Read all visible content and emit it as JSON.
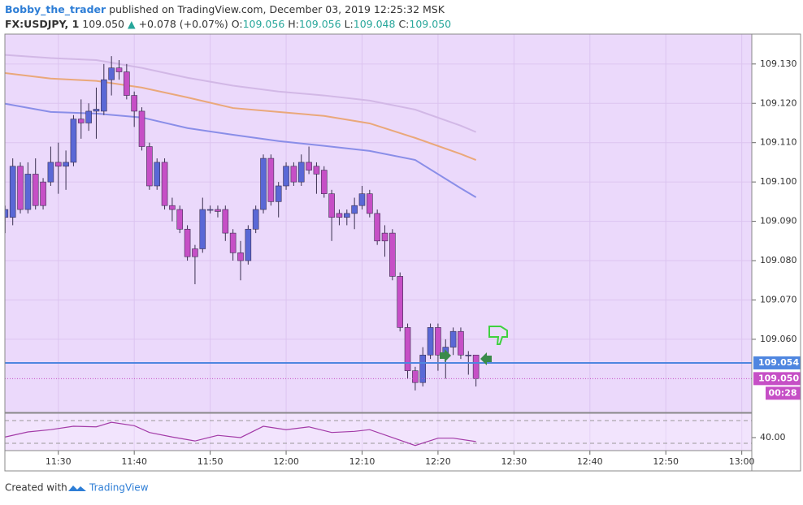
{
  "header": {
    "author": "Bobby_the_trader",
    "published": "published on TradingView.com, December 03, 2019 12:25:32 MSK",
    "symbol": "FX:USDJPY, 1",
    "last": "109.050",
    "arrow": "▲",
    "change": "+0.078 (+0.07%)",
    "o_label": "O:",
    "o": "109.056",
    "h_label": "H:",
    "h": "109.056",
    "l_label": "L:",
    "l": "109.048",
    "c_label": "C:",
    "c": "109.050"
  },
  "footer": {
    "created": "Created with",
    "brand": "TradingView"
  },
  "chart_data": [
    {
      "type": "candlestick",
      "grid": true,
      "background": "#ebd9fb",
      "up_color": "#5a68d6",
      "down_color": "#c64fc6",
      "xlim": [
        "11:22",
        "13:01"
      ],
      "xticks": [
        "11:30",
        "11:40",
        "11:50",
        "12:00",
        "12:10",
        "12:20",
        "12:30",
        "12:40",
        "12:50",
        "13:00"
      ],
      "ylim": [
        109.0414,
        109.1376
      ],
      "yticks": [
        {
          "value": 109.06,
          "label": "109.060"
        },
        {
          "value": 109.07,
          "label": "109.070"
        },
        {
          "value": 109.08,
          "label": "109.080"
        },
        {
          "value": 109.09,
          "label": "109.090"
        },
        {
          "value": 109.1,
          "label": "109.100"
        },
        {
          "value": 109.11,
          "label": "109.110"
        },
        {
          "value": 109.12,
          "label": "109.120"
        },
        {
          "value": 109.13,
          "label": "109.130"
        }
      ],
      "candles": {
        "x": [
          "11:23",
          "11:24",
          "11:25",
          "11:26",
          "11:27",
          "11:28",
          "11:29",
          "11:30",
          "11:31",
          "11:32",
          "11:33",
          "11:34",
          "11:35",
          "11:36",
          "11:37",
          "11:38",
          "11:39",
          "11:40",
          "11:41",
          "11:42",
          "11:43",
          "11:44",
          "11:45",
          "11:46",
          "11:47",
          "11:48",
          "11:49",
          "11:50",
          "11:51",
          "11:52",
          "11:53",
          "11:54",
          "11:55",
          "11:56",
          "11:57",
          "11:58",
          "11:59",
          "12:00",
          "12:01",
          "12:02",
          "12:03",
          "12:04",
          "12:05",
          "12:06",
          "12:07",
          "12:08",
          "12:09",
          "12:10",
          "12:11",
          "12:12",
          "12:13",
          "12:14",
          "12:15",
          "12:16",
          "12:17",
          "12:18",
          "12:19",
          "12:20",
          "12:21",
          "12:22",
          "12:23",
          "12:24",
          "12:25"
        ],
        "open": [
          109.091,
          109.091,
          109.104,
          109.093,
          109.102,
          109.1,
          109.1,
          109.105,
          109.104,
          109.105,
          109.116,
          109.115,
          109.118,
          109.118,
          109.126,
          109.129,
          109.128,
          109.122,
          109.118,
          109.109,
          109.099,
          109.105,
          109.094,
          109.093,
          109.088,
          109.083,
          109.083,
          109.093,
          109.093,
          109.093,
          109.087,
          109.082,
          109.08,
          109.088,
          109.093,
          109.106,
          109.095,
          109.099,
          109.104,
          109.1,
          109.105,
          109.104,
          109.103,
          109.097,
          109.092,
          109.091,
          109.092,
          109.094,
          109.097,
          109.092,
          109.087,
          109.087,
          109.076,
          109.063,
          109.052,
          109.049,
          109.056,
          109.063,
          109.056,
          109.058,
          109.062,
          109.056,
          109.056
        ],
        "high": [
          109.094,
          109.106,
          109.105,
          109.105,
          109.106,
          109.101,
          109.109,
          109.11,
          109.108,
          109.117,
          109.121,
          109.12,
          109.124,
          109.13,
          109.132,
          109.131,
          109.13,
          109.123,
          109.119,
          109.11,
          109.106,
          109.106,
          109.096,
          109.094,
          109.089,
          109.084,
          109.096,
          109.094,
          109.094,
          109.094,
          109.088,
          109.085,
          109.089,
          109.094,
          109.107,
          109.107,
          109.1,
          109.105,
          109.105,
          109.107,
          109.109,
          109.105,
          109.104,
          109.098,
          109.093,
          109.093,
          109.096,
          109.099,
          109.098,
          109.093,
          109.089,
          109.088,
          109.077,
          109.064,
          109.053,
          109.058,
          109.064,
          109.064,
          109.06,
          109.063,
          109.063,
          109.057,
          109.056
        ],
        "low": [
          109.087,
          109.089,
          109.092,
          109.092,
          109.093,
          109.093,
          109.099,
          109.097,
          109.098,
          109.104,
          109.111,
          109.113,
          109.111,
          109.117,
          109.122,
          109.126,
          109.121,
          109.114,
          109.108,
          109.098,
          109.098,
          109.093,
          109.09,
          109.087,
          109.08,
          109.074,
          109.082,
          109.092,
          109.091,
          109.085,
          109.08,
          109.075,
          109.079,
          109.087,
          109.092,
          109.094,
          109.091,
          109.098,
          109.099,
          109.099,
          109.102,
          109.097,
          109.096,
          109.085,
          109.089,
          109.089,
          109.088,
          109.093,
          109.091,
          109.084,
          109.081,
          109.075,
          109.062,
          109.05,
          109.047,
          109.048,
          109.055,
          109.052,
          109.05,
          109.056,
          109.055,
          109.051,
          109.048
        ],
        "close": [
          109.093,
          109.104,
          109.093,
          109.102,
          109.094,
          109.094,
          109.105,
          109.104,
          109.105,
          109.116,
          109.115,
          109.118,
          109.1185,
          109.126,
          109.129,
          109.128,
          109.122,
          109.118,
          109.109,
          109.099,
          109.105,
          109.094,
          109.093,
          109.088,
          109.081,
          109.081,
          109.093,
          109.093,
          109.0925,
          109.087,
          109.082,
          109.08,
          109.088,
          109.093,
          109.106,
          109.095,
          109.099,
          109.104,
          109.1,
          109.105,
          109.103,
          109.102,
          109.097,
          109.091,
          109.091,
          109.092,
          109.094,
          109.097,
          109.092,
          109.085,
          109.085,
          109.076,
          109.063,
          109.052,
          109.049,
          109.056,
          109.063,
          109.056,
          109.058,
          109.062,
          109.056,
          109.056,
          109.05
        ]
      },
      "series": [
        {
          "color": "#d2b8e6",
          "x": [
            "11:23",
            "11:29",
            "11:35",
            "11:41",
            "11:47",
            "11:53",
            "11:59",
            "12:05",
            "12:11",
            "12:17",
            "12:23",
            "12:25"
          ],
          "values": [
            109.1323,
            109.1315,
            109.131,
            109.129,
            109.1265,
            109.1245,
            109.123,
            109.122,
            109.1207,
            109.1184,
            109.1143,
            109.1127
          ]
        },
        {
          "color": "#eaa87a",
          "x": [
            "11:23",
            "11:29",
            "11:35",
            "11:41",
            "11:47",
            "11:53",
            "11:59",
            "12:05",
            "12:11",
            "12:17",
            "12:23",
            "12:25"
          ],
          "values": [
            109.1277,
            109.1263,
            109.1257,
            109.124,
            109.1215,
            109.1188,
            109.1178,
            109.1168,
            109.1149,
            109.1112,
            109.1071,
            109.1056
          ]
        },
        {
          "color": "#8a8ee8",
          "x": [
            "11:23",
            "11:29",
            "11:35",
            "11:41",
            "11:47",
            "11:53",
            "11:59",
            "12:05",
            "12:11",
            "12:17",
            "12:23",
            "12:25"
          ],
          "values": [
            109.1199,
            109.1178,
            109.1174,
            109.1164,
            109.1137,
            109.112,
            109.1104,
            109.1092,
            109.1079,
            109.1056,
            109.0984,
            109.0961
          ]
        }
      ],
      "price_lines": [
        {
          "value": 109.054,
          "color": "#4f86e0",
          "style": "solid"
        },
        {
          "value": 109.05,
          "label": "109.050",
          "color": "#c64fc6",
          "style": "dotted"
        }
      ],
      "countdown": "00:28"
    },
    {
      "type": "line",
      "background": "#f2e4fd",
      "color": "#a33ba8",
      "x": [
        "11:23",
        "11:26",
        "11:29",
        "11:32",
        "11:35",
        "11:37",
        "11:40",
        "11:42",
        "11:45",
        "11:48",
        "11:51",
        "11:54",
        "11:57",
        "12:00",
        "12:03",
        "12:06",
        "12:09",
        "12:11",
        "12:14",
        "12:17",
        "12:20",
        "12:22",
        "12:25"
      ],
      "values": [
        41,
        50,
        54,
        60,
        59,
        67,
        61,
        49,
        41,
        34,
        44,
        40,
        60,
        54,
        59,
        49,
        51,
        54,
        40,
        26,
        39,
        39,
        33
      ],
      "ylim": [
        17,
        83
      ],
      "yticks": [
        {
          "value": 40,
          "label": "40.00"
        }
      ],
      "levels": [
        70,
        30
      ]
    }
  ]
}
